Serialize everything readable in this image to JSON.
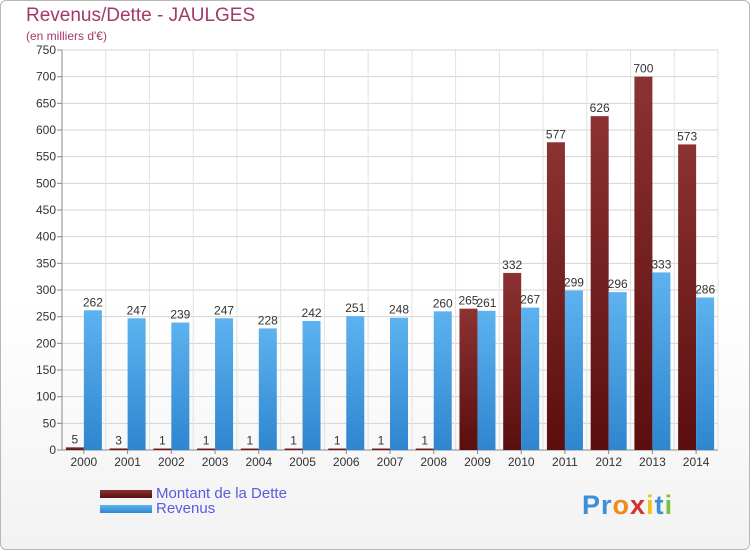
{
  "title": "Revenus/Dette - JAULGES",
  "subtitle": "(en milliers d'€)",
  "logo": {
    "text": "Proxiti",
    "letters": [
      {
        "ch": "P",
        "color": "#3f8ed8"
      },
      {
        "ch": "r",
        "color": "#3f8ed8"
      },
      {
        "ch": "o",
        "color": "#f08a1c"
      },
      {
        "ch": "x",
        "color": "#d62f2f"
      },
      {
        "ch": "i",
        "color": "#f2c21a"
      },
      {
        "ch": "t",
        "color": "#3f8ed8"
      },
      {
        "ch": "i",
        "color": "#7cc043"
      }
    ]
  },
  "chart_data": {
    "type": "bar",
    "categories": [
      "2000",
      "2001",
      "2002",
      "2003",
      "2004",
      "2005",
      "2006",
      "2007",
      "2008",
      "2009",
      "2010",
      "2011",
      "2012",
      "2013",
      "2014"
    ],
    "series": [
      {
        "name": "Montant de la Dette",
        "color": "#7a1c1c",
        "values": [
          5,
          3,
          1,
          1,
          1,
          1,
          1,
          1,
          1,
          265,
          332,
          577,
          626,
          700,
          573
        ]
      },
      {
        "name": "Revenus",
        "color": "#4aa3e6",
        "values": [
          262,
          247,
          239,
          247,
          228,
          242,
          251,
          248,
          260,
          261,
          267,
          299,
          296,
          333,
          286
        ]
      }
    ],
    "ylim": [
      0,
      750
    ],
    "yticks": [
      0,
      50,
      100,
      150,
      200,
      250,
      300,
      350,
      400,
      450,
      500,
      550,
      600,
      650,
      700,
      750
    ],
    "grid": true,
    "legend_position": "bottom-left"
  }
}
